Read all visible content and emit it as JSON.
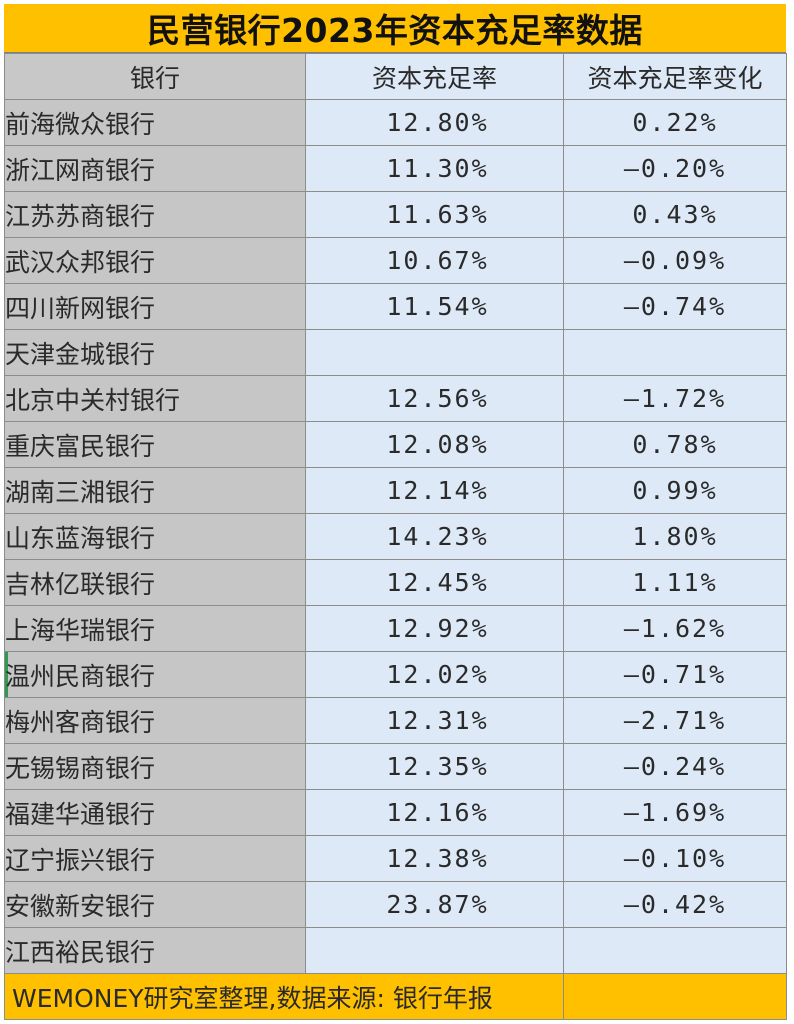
{
  "title": "民营银行2023年资本充足率数据",
  "columns": {
    "bank": "银行",
    "car": "资本充足率",
    "change": "资本充足率变化"
  },
  "rows": [
    {
      "bank": "前海微众银行",
      "car": "12.80%",
      "change": "0.22%"
    },
    {
      "bank": "浙江网商银行",
      "car": "11.30%",
      "change": "–0.20%"
    },
    {
      "bank": "江苏苏商银行",
      "car": "11.63%",
      "change": "0.43%"
    },
    {
      "bank": "武汉众邦银行",
      "car": "10.67%",
      "change": "–0.09%"
    },
    {
      "bank": "四川新网银行",
      "car": "11.54%",
      "change": "–0.74%"
    },
    {
      "bank": "天津金城银行",
      "car": "",
      "change": ""
    },
    {
      "bank": "北京中关村银行",
      "car": "12.56%",
      "change": "–1.72%"
    },
    {
      "bank": "重庆富民银行",
      "car": "12.08%",
      "change": "0.78%"
    },
    {
      "bank": "湖南三湘银行",
      "car": "12.14%",
      "change": "0.99%"
    },
    {
      "bank": "山东蓝海银行",
      "car": "14.23%",
      "change": "1.80%"
    },
    {
      "bank": "吉林亿联银行",
      "car": "12.45%",
      "change": "1.11%"
    },
    {
      "bank": "上海华瑞银行",
      "car": "12.92%",
      "change": "–1.62%"
    },
    {
      "bank": "温州民商银行",
      "car": "12.02%",
      "change": "–0.71%"
    },
    {
      "bank": "梅州客商银行",
      "car": "12.31%",
      "change": "–2.71%"
    },
    {
      "bank": "无锡锡商银行",
      "car": "12.35%",
      "change": "–0.24%"
    },
    {
      "bank": "福建华通银行",
      "car": "12.16%",
      "change": "–1.69%"
    },
    {
      "bank": "辽宁振兴银行",
      "car": "12.38%",
      "change": "–0.10%"
    },
    {
      "bank": "安徽新安银行",
      "car": "23.87%",
      "change": "–0.42%"
    },
    {
      "bank": "江西裕民银行",
      "car": "",
      "change": ""
    }
  ],
  "footer": {
    "note": "WEMONEY研究室整理,数据来源: 银行年报",
    "extra": ""
  },
  "colors": {
    "title_bg": "#ffc000",
    "bank_col_bg": "#c6c6c6",
    "value_bg": "#dde9f7",
    "active_cell_marker": "#2e9b4e"
  }
}
